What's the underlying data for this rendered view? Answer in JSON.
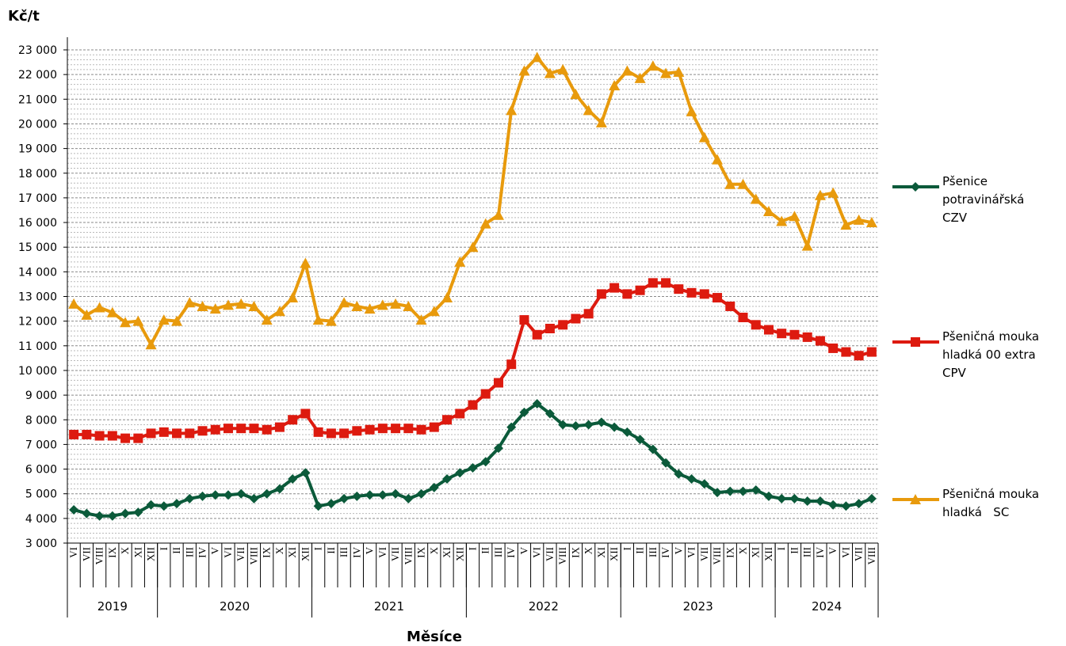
{
  "chart_data": {
    "type": "line",
    "title": "",
    "ylabel": "Kč/t",
    "xlabel": "Měsíce",
    "ylim": [
      3000,
      23000
    ],
    "ytick_step": 1000,
    "minor_grid_step": 200,
    "grid": true,
    "legend_position": "right",
    "y_ticks": [
      "3 000",
      "4 000",
      "5 000",
      "6 000",
      "7 000",
      "8 000",
      "9 000",
      "10 000",
      "11 000",
      "12 000",
      "13 000",
      "14 000",
      "15 000",
      "16 000",
      "17 000",
      "18 000",
      "19 000",
      "20 000",
      "21 000",
      "22 000",
      "23 000"
    ],
    "years": [
      {
        "label": "2019",
        "months": [
          "VI",
          "VII",
          "VIII",
          "IX",
          "X",
          "XI",
          "XII"
        ]
      },
      {
        "label": "2020",
        "months": [
          "I",
          "II",
          "III",
          "IV",
          "V",
          "VI",
          "VII",
          "VIII",
          "IX",
          "X",
          "XI",
          "XII"
        ]
      },
      {
        "label": "2021",
        "months": [
          "I",
          "II",
          "III",
          "IV",
          "V",
          "VI",
          "VII",
          "VIII",
          "IX",
          "X",
          "XI",
          "XII"
        ]
      },
      {
        "label": "2022",
        "months": [
          "I",
          "II",
          "III",
          "IV",
          "V",
          "VI",
          "VII",
          "VIII",
          "IX",
          "X",
          "XI",
          "XII"
        ]
      },
      {
        "label": "2023",
        "months": [
          "I",
          "II",
          "III",
          "IV",
          "V",
          "VI",
          "VII",
          "VIII",
          "IX",
          "X",
          "XI",
          "XII"
        ]
      },
      {
        "label": "2024",
        "months": [
          "I",
          "II",
          "III",
          "IV",
          "V",
          "VI",
          "VII",
          "VIII"
        ]
      }
    ],
    "series": [
      {
        "name": "Pšenice potravinářská CZV",
        "legend_lines": [
          "Pšenice",
          "potravinářská",
          "CZV"
        ],
        "color": "#0b5a3a",
        "marker": "diamond",
        "values": [
          4350,
          4200,
          4100,
          4100,
          4200,
          4250,
          4550,
          4500,
          4600,
          4800,
          4900,
          4950,
          4950,
          5000,
          4800,
          5000,
          5200,
          5600,
          5850,
          4500,
          4600,
          4800,
          4900,
          4950,
          4950,
          5000,
          4800,
          5000,
          5250,
          5600,
          5850,
          6050,
          6300,
          6850,
          7700,
          8300,
          8650,
          8250,
          7800,
          7750,
          7800,
          7900,
          7700,
          7500,
          7200,
          6800,
          6250,
          5800,
          5600,
          5400,
          5050,
          5100,
          5100,
          5150,
          4900,
          4800,
          4800,
          4700,
          4700,
          4550,
          4500,
          4600,
          4800
        ]
      },
      {
        "name": "Pšeničná mouka hladká 00 extra CPV",
        "legend_lines": [
          "Pšeničná mouka",
          "hladká 00 extra",
          "CPV"
        ],
        "color": "#dd1a0f",
        "marker": "square",
        "values": [
          7400,
          7400,
          7350,
          7350,
          7250,
          7250,
          7450,
          7500,
          7450,
          7450,
          7550,
          7600,
          7650,
          7650,
          7650,
          7600,
          7700,
          8000,
          8250,
          7500,
          7450,
          7450,
          7550,
          7600,
          7650,
          7650,
          7650,
          7600,
          7700,
          8000,
          8250,
          8600,
          9050,
          9500,
          10250,
          12050,
          11450,
          11700,
          11850,
          12100,
          12300,
          13100,
          13350,
          13100,
          13250,
          13550,
          13550,
          13300,
          13150,
          13100,
          12950,
          12600,
          12150,
          11850,
          11650,
          11500,
          11450,
          11350,
          11200,
          10900,
          10750,
          10600,
          10750
        ]
      },
      {
        "name": "Pšeničná mouka hladká SC",
        "legend_lines": [
          "Pšeničná mouka",
          "hladká   SC"
        ],
        "color": "#e89a0c",
        "marker": "triangle",
        "values": [
          12700,
          12250,
          12550,
          12350,
          11950,
          12000,
          11050,
          12050,
          12000,
          12750,
          12600,
          12500,
          12650,
          12700,
          12600,
          12050,
          12400,
          12950,
          14350,
          12050,
          12000,
          12750,
          12600,
          12500,
          12650,
          12700,
          12600,
          12050,
          12400,
          12950,
          14400,
          15000,
          15950,
          16300,
          20550,
          22150,
          22700,
          22050,
          22200,
          21200,
          20550,
          20050,
          21550,
          22150,
          21850,
          22350,
          22050,
          22100,
          20500,
          19450,
          18550,
          17550,
          17550,
          16950,
          16450,
          16050,
          16250,
          15050,
          17100,
          17200,
          15900,
          16100,
          16000
        ]
      }
    ]
  }
}
